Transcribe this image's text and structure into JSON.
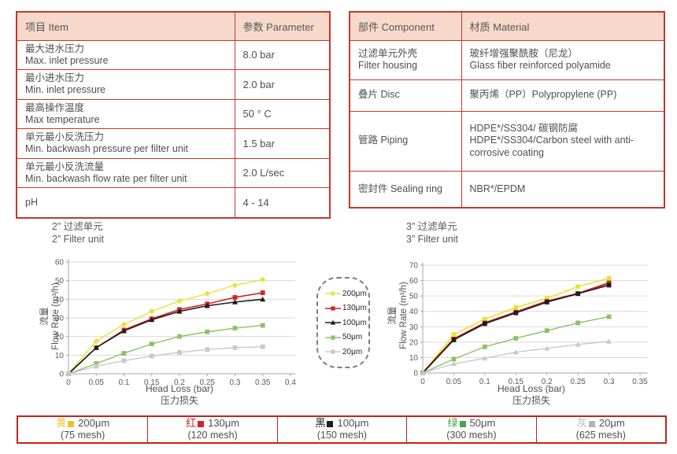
{
  "colors": {
    "table_border": "#c0392b",
    "header_bg": "#f6d9cb",
    "bottom_border": "#c2231c",
    "grid": "#d9d9d9",
    "axis": "#a6a6a6",
    "tick_text": "#595959"
  },
  "spec_table": {
    "headers": [
      "项目 Item",
      "参数 Parameter"
    ],
    "rows": [
      {
        "item_zh": "最大进水压力",
        "item_en": "Max. inlet pressure",
        "value": "8.0 bar"
      },
      {
        "item_zh": "最小进水压力",
        "item_en": "Min. inlet pressure",
        "value": "2.0 bar"
      },
      {
        "item_zh": "最高操作温度",
        "item_en": "Max temperature",
        "value": "50 ° C"
      },
      {
        "item_zh": "单元最小反洗压力",
        "item_en": "Min. backwash pressure per filter unit",
        "value": "1.5 bar"
      },
      {
        "item_zh": "单元最小反洗流量",
        "item_en": "Min. backwash flow rate per filter unit",
        "value": "2.0 L/sec"
      },
      {
        "item_zh": "pH",
        "item_en": "",
        "value": "4 - 14"
      }
    ]
  },
  "material_table": {
    "headers": [
      "部件 Component",
      "材质 Material"
    ],
    "rows": [
      {
        "comp_zh": "过滤单元外壳",
        "comp_en": "Filter housing",
        "mat_zh": "玻纤增强聚酰胺（尼龙）",
        "mat_en": "Glass fiber reinforced polyamide"
      },
      {
        "comp_zh": "叠片 Disc",
        "comp_en": "",
        "mat_zh": "聚丙烯（PP）Polypropylene (PP)",
        "mat_en": ""
      },
      {
        "comp_zh": "管路 Piping",
        "comp_en": "",
        "mat_zh": "HDPE*/SS304/ 碳钢防腐",
        "mat_en": "HDPE*/SS304/Carbon steel with anti-corrosive coating"
      },
      {
        "comp_zh": "密封件 Sealing ring",
        "comp_en": "",
        "mat_zh": "NBR*/EPDM",
        "mat_en": ""
      }
    ]
  },
  "chart_data": [
    {
      "type": "line",
      "title_zh": "2” 过滤单元",
      "title_en": "2” Filter unit",
      "xlabel": "Head Loss (bar)",
      "xlabel_zh": "压力损失",
      "ylabel_zh": "流量",
      "ylabel": "Flow Rate (m³/h)",
      "grid": "horizontal",
      "legend_position": "none",
      "xlim": [
        0,
        0.4
      ],
      "ylim": [
        0,
        60
      ],
      "xticks": [
        0,
        0.05,
        0.1,
        0.15,
        0.2,
        0.25,
        0.3,
        0.35,
        0.4
      ],
      "yticks": [
        0,
        10,
        20,
        30,
        40,
        50,
        60
      ],
      "x": [
        0,
        0.05,
        0.1,
        0.15,
        0.2,
        0.25,
        0.3,
        0.35
      ],
      "series": [
        {
          "name": "200μm",
          "color": "#e9e239",
          "marker": "diamond",
          "lw": 1.4,
          "values": [
            0,
            17.5,
            26.5,
            33.5,
            39,
            43,
            47.5,
            50.5
          ]
        },
        {
          "name": "130μm",
          "color": "#d02622",
          "marker": "square",
          "lw": 1.6,
          "values": [
            0,
            14,
            23.5,
            29.5,
            34.5,
            37.5,
            41,
            43.5
          ]
        },
        {
          "name": "100μm",
          "color": "#1d1d1b",
          "marker": "triangle",
          "lw": 1.6,
          "values": [
            0,
            14,
            23,
            29,
            33.5,
            36.5,
            38.5,
            40
          ]
        },
        {
          "name": "50μm",
          "color": "#8cc166",
          "marker": "square",
          "lw": 1.4,
          "values": [
            0,
            5.5,
            11,
            16,
            20,
            22.5,
            24.5,
            26
          ]
        },
        {
          "name": "20μm",
          "color": "#c9c9c9",
          "marker": "square",
          "lw": 1.4,
          "values": [
            0,
            4,
            7,
            9.5,
            11.5,
            13,
            14,
            14.5
          ]
        }
      ]
    },
    {
      "type": "line",
      "title_zh": "3” 过滤单元",
      "title_en": "3” Filter unit",
      "xlabel": "Head Loss (bar)",
      "xlabel_zh": "压力损失",
      "ylabel_zh": "流量",
      "ylabel": "Flow Rate (m³/h)",
      "grid": "horizontal",
      "legend_position": "none",
      "xlim": [
        0,
        0.35
      ],
      "ylim": [
        0,
        70
      ],
      "xticks": [
        0,
        0.05,
        0.1,
        0.15,
        0.2,
        0.25,
        0.3,
        0.35
      ],
      "yticks": [
        0,
        10,
        20,
        30,
        40,
        50,
        60,
        70
      ],
      "x": [
        0,
        0.05,
        0.1,
        0.15,
        0.2,
        0.25,
        0.3
      ],
      "series": [
        {
          "name": "200μm",
          "color": "#e9e239",
          "marker": "square",
          "lw": 1.6,
          "values": [
            0,
            25,
            35,
            42.5,
            48.5,
            56,
            61.5
          ]
        },
        {
          "name": "130μm",
          "color": "#d02622",
          "marker": "square",
          "lw": 2.2,
          "values": [
            0,
            22,
            32.5,
            39.5,
            46.5,
            51.5,
            58.5
          ]
        },
        {
          "name": "100μm",
          "color": "#1d1d1b",
          "marker": "square",
          "lw": 1.6,
          "values": [
            0,
            21.5,
            32,
            39,
            46,
            51.5,
            57
          ]
        },
        {
          "name": "50μm",
          "color": "#8cc166",
          "marker": "square",
          "lw": 1.4,
          "values": [
            0,
            9,
            17,
            22.5,
            27.5,
            32.5,
            36.5
          ]
        },
        {
          "name": "20μm",
          "color": "#c9c9c9",
          "marker": "triangle",
          "lw": 1.4,
          "values": [
            0,
            6,
            9.5,
            13.5,
            16,
            18.5,
            20.5
          ]
        }
      ]
    }
  ],
  "legend_box": {
    "items": [
      {
        "label": "200μm",
        "color": "#e9e239",
        "marker": "diamond"
      },
      {
        "label": "130μm",
        "color": "#d02622",
        "marker": "square"
      },
      {
        "label": "100μm",
        "color": "#1d1d1b",
        "marker": "triangle"
      },
      {
        "label": "50μm",
        "color": "#8cc166",
        "marker": "square"
      },
      {
        "label": "20μm",
        "color": "#c9c9c9",
        "marker": "square"
      }
    ]
  },
  "bottom_legend": {
    "cells": [
      {
        "color_zh": "黄",
        "color": "#eec22e",
        "label": "200μm",
        "mesh": "(75 mesh)"
      },
      {
        "color_zh": "红",
        "color": "#d02622",
        "label": "130μm",
        "mesh": "(120 mesh)"
      },
      {
        "color_zh": "黑",
        "color": "#1d1d1b",
        "label": "100μm",
        "mesh": "(150 mesh)"
      },
      {
        "color_zh": "绿",
        "color": "#3fa74c",
        "label": "50μm",
        "mesh": "(300 mesh)"
      },
      {
        "color_zh": "灰",
        "color": "#b5b5b5",
        "label": "20μm",
        "mesh": "(625 mesh)"
      }
    ]
  }
}
